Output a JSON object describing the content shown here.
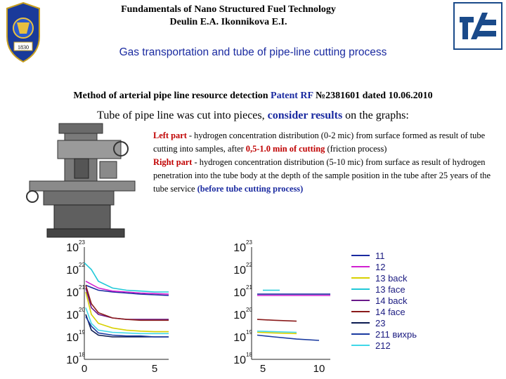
{
  "header": {
    "line1": "Fundamentals of Nano Structured Fuel Technology",
    "line2": "Deulin E.A.   Ikonnikova E.I.",
    "crest_year": "1830"
  },
  "subtitle": "Gas transportation and tube of pipe-line cutting process",
  "method": {
    "text": "Method of arterial pipe line resource detection ",
    "patent": "Patent RF",
    "number": " №2381601 dated 10.06.2010"
  },
  "tube_line": {
    "text1": "Tube of pipe line was cut into pieces, ",
    "highlight": "consider results",
    "text2": " on the graphs:"
  },
  "description": {
    "left_label": "Left part",
    "left_text1": " - hydrogen concentration distribution (0-2 mic) from surface formed as result of tube cutting into samples, after ",
    "left_highlight": "0,5-1.0 min of cutting",
    "left_text2": " (friction process)",
    "right_label": "Right part",
    "right_text": " - hydrogen concentration distribution (5-10 mic) from surface as result of hydrogen penetration into the tube body at the depth of the sample position in the tube after 25 years of the tube service ",
    "right_highlight": "(before tube cutting process)"
  },
  "colors": {
    "title_blue": "#1a2aa0",
    "red": "#c00000"
  },
  "icons": {
    "crest": "university-crest-icon",
    "logo": "institute-logo-icon",
    "machine": "milling-machine-image"
  },
  "chart_data": [
    {
      "type": "line",
      "yscale": "log",
      "ylim": [
        1e+18,
        1e+23
      ],
      "xlim": [
        0,
        6
      ],
      "xticks": [
        "0",
        "5"
      ],
      "yticks": [
        "10",
        "10",
        "10",
        "10",
        "10",
        "10"
      ],
      "yexp": [
        "23",
        "22",
        "21",
        "20",
        "19",
        "18"
      ],
      "series": [
        {
          "name": "11",
          "color": "#1a2aa0",
          "x": [
            0.1,
            1,
            2,
            3,
            4,
            5,
            6
          ],
          "y": [
            2e+21,
            1.2e+21,
            1e+21,
            9e+20,
            8e+20,
            7.5e+20,
            7e+20
          ]
        },
        {
          "name": "12",
          "color": "#d020d0",
          "x": [
            0.1,
            1,
            2,
            3,
            4,
            5,
            6
          ],
          "y": [
            3e+21,
            1.5e+21,
            1.1e+21,
            1e+21,
            9e+20,
            8.5e+20,
            8e+20
          ]
        },
        {
          "name": "13 back",
          "color": "#d8d000",
          "x": [
            0.1,
            0.5,
            1,
            2,
            3,
            4,
            5,
            6
          ],
          "y": [
            1e+21,
            1e+20,
            4e+19,
            2.5e+19,
            2e+19,
            1.8e+19,
            1.7e+19,
            1.7e+19
          ]
        },
        {
          "name": "13 face",
          "color": "#20c8d8",
          "x": [
            0,
            0.5,
            1,
            2,
            3,
            4,
            5,
            6
          ],
          "y": [
            2e+22,
            1e+22,
            3e+21,
            1.5e+21,
            1.2e+21,
            1.1e+21,
            1e+21,
            1e+21
          ]
        },
        {
          "name": "14 back",
          "color": "#6a1a8a",
          "x": [
            0.1,
            0.5,
            1,
            2,
            3,
            4,
            5,
            6
          ],
          "y": [
            1.5e+21,
            2e+20,
            1e+20,
            7e+19,
            6e+19,
            6e+19,
            6e+19,
            6e+19
          ]
        },
        {
          "name": "14 face",
          "color": "#8a1a1a",
          "x": [
            0.1,
            0.5,
            1,
            2,
            3,
            4,
            5,
            6
          ],
          "y": [
            2e+21,
            3e+20,
            1.2e+20,
            7e+19,
            6e+19,
            5.5e+19,
            5.5e+19,
            5.5e+19
          ]
        },
        {
          "name": "23",
          "color": "#0a1a50",
          "x": [
            0.1,
            0.5,
            1,
            2,
            3,
            4,
            5,
            6
          ],
          "y": [
            1e+20,
            2e+19,
            1.2e+19,
            1e+19,
            1e+19,
            1e+19,
            1e+19,
            1e+19
          ]
        },
        {
          "name": "211 вихрь",
          "color": "#1a3aa0",
          "x": [
            0.1,
            0.5,
            1,
            2,
            3,
            4,
            5,
            6
          ],
          "y": [
            8e+19,
            3e+19,
            1.5e+19,
            1.2e+19,
            1.1e+19,
            1.1e+19,
            1e+19,
            1e+19
          ]
        },
        {
          "name": "212",
          "color": "#40d8e8",
          "x": [
            0.1,
            0.5,
            1,
            2,
            3,
            4,
            5,
            6
          ],
          "y": [
            2e+20,
            4e+19,
            2e+19,
            1.6e+19,
            1.5e+19,
            1.4e+19,
            1.4e+19,
            1.4e+19
          ]
        }
      ]
    },
    {
      "type": "line",
      "yscale": "log",
      "ylim": [
        1e+18,
        1e+23
      ],
      "xlim": [
        4,
        11
      ],
      "xticks": [
        "5",
        "10"
      ],
      "yticks": [
        "10",
        "10",
        "10",
        "10",
        "10",
        "10"
      ],
      "yexp": [
        "23",
        "22",
        "21",
        "20",
        "19",
        "18"
      ],
      "series": [
        {
          "name": "11",
          "color": "#1a2aa0",
          "x": [
            4.5,
            6,
            8,
            10,
            11
          ],
          "y": [
            8e+20,
            8e+20,
            8e+20,
            8e+20,
            8e+20
          ]
        },
        {
          "name": "12",
          "color": "#d020d0",
          "x": [
            4.5,
            6,
            8,
            10,
            11
          ],
          "y": [
            7e+20,
            7e+20,
            7e+20,
            7e+20,
            7e+20
          ]
        },
        {
          "name": "13 face",
          "color": "#20c8d8",
          "x": [
            5,
            6.5
          ],
          "y": [
            1.2e+21,
            1.2e+21
          ]
        },
        {
          "name": "14 face",
          "color": "#8a1a1a",
          "x": [
            4.5,
            6,
            8
          ],
          "y": [
            6e+19,
            5.5e+19,
            5e+19
          ]
        },
        {
          "name": "13 back",
          "color": "#d8d000",
          "x": [
            4.5,
            6,
            8
          ],
          "y": [
            1.6e+19,
            1.5e+19,
            1.4e+19
          ]
        },
        {
          "name": "212",
          "color": "#40d8e8",
          "x": [
            4.5,
            6,
            8
          ],
          "y": [
            1.8e+19,
            1.7e+19,
            1.6e+19
          ]
        },
        {
          "name": "211 вихрь",
          "color": "#1a3aa0",
          "x": [
            4.5,
            6,
            8,
            10
          ],
          "y": [
            1.2e+19,
            1e+19,
            8e+18,
            7e+18
          ]
        }
      ]
    }
  ]
}
